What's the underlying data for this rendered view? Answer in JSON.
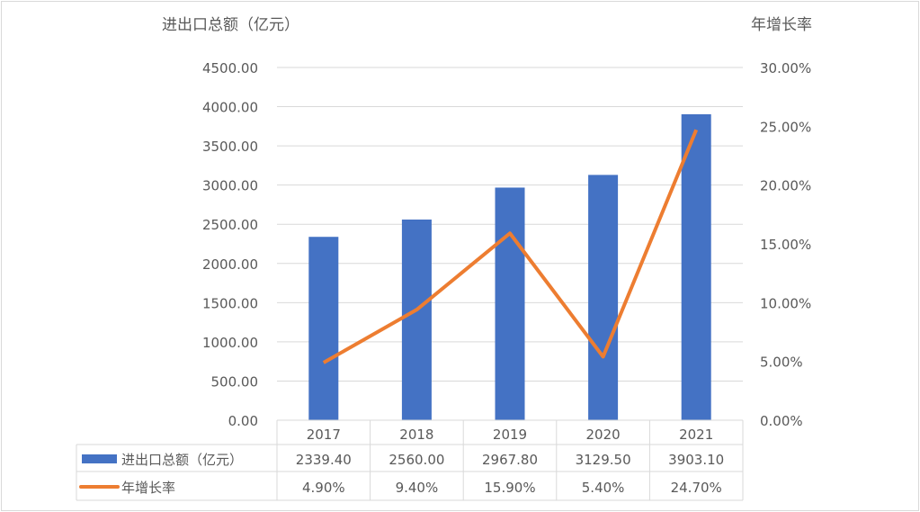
{
  "chart_data": {
    "type": "bar+line",
    "categories": [
      "2017",
      "2018",
      "2019",
      "2020",
      "2021"
    ],
    "series": [
      {
        "name": "进出口总额（亿元）",
        "type": "bar",
        "axis": "left",
        "color": "#4472C4",
        "values": [
          2339.4,
          2560.0,
          2967.8,
          3129.5,
          3903.1
        ],
        "labels": [
          "2339.40",
          "2560.00",
          "2967.80",
          "3129.50",
          "3903.10"
        ]
      },
      {
        "name": "年增长率",
        "type": "line",
        "axis": "right",
        "color": "#ED7D31",
        "values": [
          4.9,
          9.4,
          15.9,
          5.4,
          24.7
        ],
        "labels": [
          "4.90%",
          "9.40%",
          "15.90%",
          "5.40%",
          "24.70%"
        ]
      }
    ],
    "ylabel_left": "进出口总额（亿元）",
    "ylabel_right": "年增长率",
    "ylim_left": [
      0,
      4500
    ],
    "ylim_right": [
      0,
      30
    ],
    "yticks_left": [
      "0.00",
      "500.00",
      "1000.00",
      "1500.00",
      "2000.00",
      "2500.00",
      "3000.00",
      "3500.00",
      "4000.00",
      "4500.00"
    ],
    "yticks_right": [
      "0.00%",
      "5.00%",
      "10.00%",
      "15.00%",
      "20.00%",
      "25.00%",
      "30.00%"
    ],
    "grid": true,
    "legend": "data-table"
  }
}
